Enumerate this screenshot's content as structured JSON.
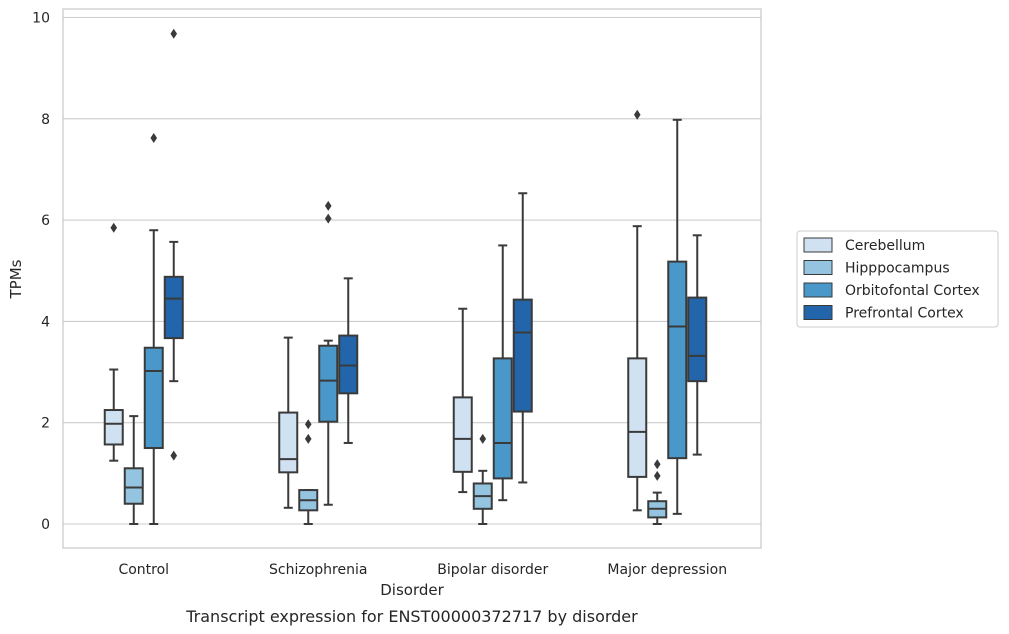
{
  "caption": "Transcript expression for ENST00000372717 by disorder",
  "colors": {
    "Cerebellum": "#d0e2f2",
    "Hipppocampus": "#94c4df",
    "Orbitofontal Cortex": "#4a98c9",
    "Prefrontal Cortex": "#2265ab",
    "line": "#3a3a3a",
    "grid": "#cccccc"
  },
  "chart_data": {
    "type": "box",
    "xlabel": "Disorder",
    "ylabel": "TPMs",
    "ylim": [
      -0.45,
      10.2
    ],
    "yticks": [
      0,
      2,
      4,
      6,
      8,
      10
    ],
    "grid": "horizontal",
    "legend_placement": "right",
    "categories": [
      "Control",
      "Schizophrenia",
      "Bipolar disorder",
      "Major depression"
    ],
    "series": [
      {
        "name": "Cerebellum",
        "boxes": [
          {
            "whislo": 1.25,
            "q1": 1.57,
            "med": 1.98,
            "q3": 2.25,
            "whishi": 3.05,
            "fliers": [
              5.85
            ]
          },
          {
            "whislo": 0.32,
            "q1": 1.02,
            "med": 1.28,
            "q3": 2.2,
            "whishi": 3.68,
            "fliers": []
          },
          {
            "whislo": 0.63,
            "q1": 1.03,
            "med": 1.68,
            "q3": 2.5,
            "whishi": 4.25,
            "fliers": []
          },
          {
            "whislo": 0.27,
            "q1": 0.93,
            "med": 1.82,
            "q3": 3.27,
            "whishi": 5.88,
            "fliers": [
              8.08
            ]
          }
        ]
      },
      {
        "name": "Hipppocampus",
        "boxes": [
          {
            "whislo": 0.0,
            "q1": 0.4,
            "med": 0.72,
            "q3": 1.1,
            "whishi": 2.13,
            "fliers": []
          },
          {
            "whislo": 0.0,
            "q1": 0.27,
            "med": 0.47,
            "q3": 0.67,
            "whishi": 0.67,
            "fliers": [
              1.68,
              1.97
            ]
          },
          {
            "whislo": 0.0,
            "q1": 0.3,
            "med": 0.55,
            "q3": 0.8,
            "whishi": 1.05,
            "fliers": [
              1.68
            ]
          },
          {
            "whislo": 0.0,
            "q1": 0.13,
            "med": 0.3,
            "q3": 0.45,
            "whishi": 0.62,
            "fliers": [
              0.95,
              1.18
            ]
          }
        ]
      },
      {
        "name": "Orbitofontal Cortex",
        "boxes": [
          {
            "whislo": 0.0,
            "q1": 1.5,
            "med": 3.02,
            "q3": 3.48,
            "whishi": 5.8,
            "fliers": [
              7.62
            ]
          },
          {
            "whislo": 0.38,
            "q1": 2.02,
            "med": 2.83,
            "q3": 3.52,
            "whishi": 3.62,
            "fliers": [
              6.03,
              6.28
            ]
          },
          {
            "whislo": 0.47,
            "q1": 0.9,
            "med": 1.6,
            "q3": 3.27,
            "whishi": 5.5,
            "fliers": []
          },
          {
            "whislo": 0.2,
            "q1": 1.3,
            "med": 3.9,
            "q3": 5.18,
            "whishi": 7.98,
            "fliers": []
          }
        ]
      },
      {
        "name": "Prefrontal Cortex",
        "boxes": [
          {
            "whislo": 2.82,
            "q1": 3.67,
            "med": 4.45,
            "q3": 4.88,
            "whishi": 5.57,
            "fliers": [
              1.35,
              9.68
            ]
          },
          {
            "whislo": 1.6,
            "q1": 2.58,
            "med": 3.13,
            "q3": 3.72,
            "whishi": 4.85,
            "fliers": []
          },
          {
            "whislo": 0.82,
            "q1": 2.22,
            "med": 3.78,
            "q3": 4.43,
            "whishi": 6.53,
            "fliers": []
          },
          {
            "whislo": 1.37,
            "q1": 2.82,
            "med": 3.32,
            "q3": 4.47,
            "whishi": 5.7,
            "fliers": []
          }
        ]
      }
    ]
  }
}
